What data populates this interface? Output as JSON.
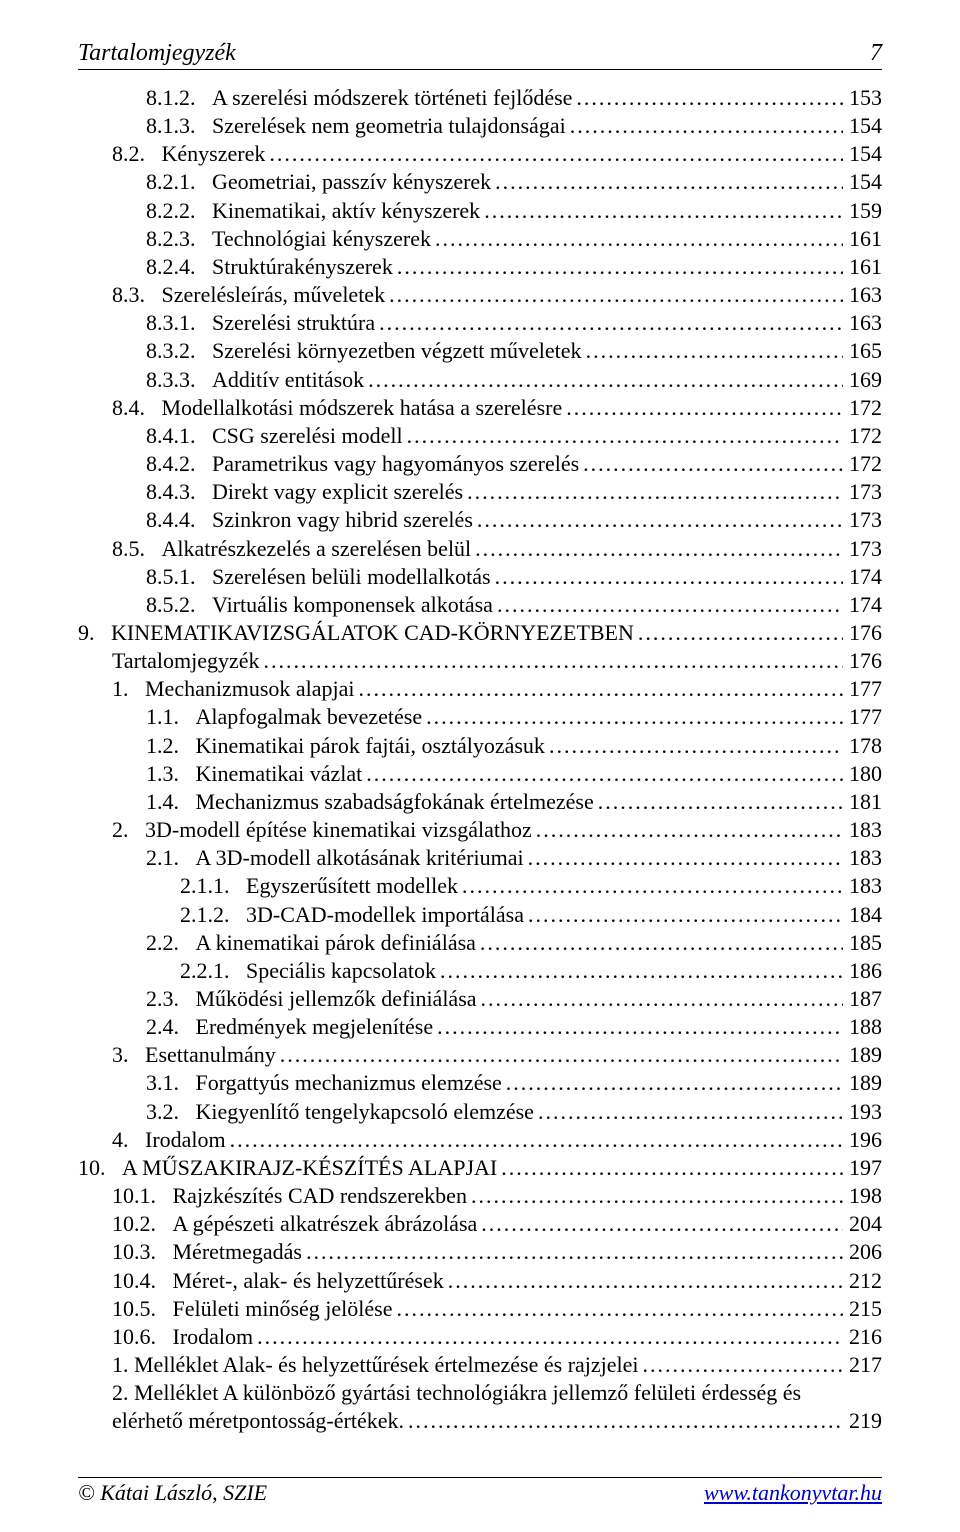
{
  "header": {
    "title": "Tartalomjegyzék",
    "page_number": "7"
  },
  "toc": [
    {
      "indent": 2,
      "num": "8.1.2.",
      "title": "A szerelési módszerek történeti fejlődése",
      "page": "153"
    },
    {
      "indent": 2,
      "num": "8.1.3.",
      "title": "Szerelések nem geometria tulajdonságai",
      "page": "154"
    },
    {
      "indent": 1,
      "num": "8.2.",
      "title": "Kényszerek",
      "page": "154"
    },
    {
      "indent": 2,
      "num": "8.2.1.",
      "title": "Geometriai, passzív kényszerek",
      "page": "154"
    },
    {
      "indent": 2,
      "num": "8.2.2.",
      "title": "Kinematikai, aktív kényszerek",
      "page": "159"
    },
    {
      "indent": 2,
      "num": "8.2.3.",
      "title": "Technológiai kényszerek",
      "page": "161"
    },
    {
      "indent": 2,
      "num": "8.2.4.",
      "title": "Struktúrakényszerek",
      "page": "161"
    },
    {
      "indent": 1,
      "num": "8.3.",
      "title": "Szerelésleírás, műveletek",
      "page": "163"
    },
    {
      "indent": 2,
      "num": "8.3.1.",
      "title": "Szerelési struktúra",
      "page": "163"
    },
    {
      "indent": 2,
      "num": "8.3.2.",
      "title": "Szerelési környezetben végzett műveletek",
      "page": "165"
    },
    {
      "indent": 2,
      "num": "8.3.3.",
      "title": "Additív entitások",
      "page": "169"
    },
    {
      "indent": 1,
      "num": "8.4.",
      "title": "Modellalkotási módszerek hatása a szerelésre",
      "page": "172"
    },
    {
      "indent": 2,
      "num": "8.4.1.",
      "title": "CSG szerelési modell",
      "page": "172"
    },
    {
      "indent": 2,
      "num": "8.4.2.",
      "title": "Parametrikus vagy hagyományos szerelés",
      "page": "172"
    },
    {
      "indent": 2,
      "num": "8.4.3.",
      "title": "Direkt vagy explicit szerelés",
      "page": "173"
    },
    {
      "indent": 2,
      "num": "8.4.4.",
      "title": "Szinkron vagy hibrid szerelés",
      "page": "173"
    },
    {
      "indent": 1,
      "num": "8.5.",
      "title": "Alkatrészkezelés a szerelésen belül",
      "page": "173"
    },
    {
      "indent": 2,
      "num": "8.5.1.",
      "title": "Szerelésen belüli modellalkotás",
      "page": "174"
    },
    {
      "indent": 2,
      "num": "8.5.2.",
      "title": "Virtuális komponensek alkotása",
      "page": "174"
    },
    {
      "indent": 0,
      "num": "9.",
      "title": "KINEMATIKAVIZSGÁLATOK CAD-KÖRNYEZETBEN",
      "page": "176"
    },
    {
      "indent": 1,
      "num": "",
      "title": "Tartalomjegyzék",
      "page": "176"
    },
    {
      "indent": 1,
      "num": "1.",
      "title": "Mechanizmusok alapjai",
      "page": "177"
    },
    {
      "indent": 2,
      "num": "1.1.",
      "title": "Alapfogalmak bevezetése",
      "page": "177"
    },
    {
      "indent": 2,
      "num": "1.2.",
      "title": "Kinematikai párok fajtái, osztályozásuk",
      "page": "178"
    },
    {
      "indent": 2,
      "num": "1.3.",
      "title": "Kinematikai vázlat",
      "page": "180"
    },
    {
      "indent": 2,
      "num": "1.4.",
      "title": "Mechanizmus szabadságfokának értelmezése",
      "page": "181"
    },
    {
      "indent": 1,
      "num": "2.",
      "title": "3D-modell építése kinematikai vizsgálathoz",
      "page": "183"
    },
    {
      "indent": 2,
      "num": "2.1.",
      "title": "A 3D-modell alkotásának kritériumai",
      "page": "183"
    },
    {
      "indent": 3,
      "num": "2.1.1.",
      "title": "Egyszerűsített modellek",
      "page": "183"
    },
    {
      "indent": 3,
      "num": "2.1.2.",
      "title": "3D-CAD-modellek importálása",
      "page": "184"
    },
    {
      "indent": 2,
      "num": "2.2.",
      "title": "A kinematikai párok definiálása",
      "page": "185"
    },
    {
      "indent": 3,
      "num": "2.2.1.",
      "title": "Speciális kapcsolatok",
      "page": "186"
    },
    {
      "indent": 2,
      "num": "2.3.",
      "title": "Működési jellemzők definiálása",
      "page": "187"
    },
    {
      "indent": 2,
      "num": "2.4.",
      "title": "Eredmények megjelenítése",
      "page": "188"
    },
    {
      "indent": 1,
      "num": "3.",
      "title": "Esettanulmány",
      "page": "189"
    },
    {
      "indent": 2,
      "num": "3.1.",
      "title": "Forgattyús mechanizmus elemzése",
      "page": "189"
    },
    {
      "indent": 2,
      "num": "3.2.",
      "title": "Kiegyenlítő tengelykapcsoló elemzése",
      "page": "193"
    },
    {
      "indent": 1,
      "num": "4.",
      "title": "Irodalom",
      "page": "196"
    },
    {
      "indent": 0,
      "num": "10.",
      "title": "A MŰSZAKIRAJZ-KÉSZÍTÉS ALAPJAI",
      "page": "197"
    },
    {
      "indent": 1,
      "num": "10.1.",
      "title": "Rajzkészítés CAD rendszerekben",
      "page": "198"
    },
    {
      "indent": 1,
      "num": "10.2.",
      "title": "A gépészeti alkatrészek ábrázolása",
      "page": "204"
    },
    {
      "indent": 1,
      "num": "10.3.",
      "title": "Méretmegadás",
      "page": "206"
    },
    {
      "indent": 1,
      "num": "10.4.",
      "title": "Méret-, alak- és helyzettűrések",
      "page": "212"
    },
    {
      "indent": 1,
      "num": "10.5.",
      "title": "Felületi minőség jelölése",
      "page": "215"
    },
    {
      "indent": 1,
      "num": "10.6.",
      "title": "Irodalom",
      "page": "216"
    },
    {
      "indent": 1,
      "num": "",
      "title": "1. Melléklet Alak- és helyzettűrések értelmezése és rajzjelei",
      "page": "217"
    },
    {
      "indent": 1,
      "num": "",
      "title": "2. Melléklet A különböző gyártási technológiákra jellemző felületi érdesség és elérhető méretpontosság-értékek.",
      "page": "219",
      "wrap": true
    }
  ],
  "footer": {
    "copyright": "© Kátai László, SZIE",
    "link_text": "www.tankonyvtar.hu"
  }
}
